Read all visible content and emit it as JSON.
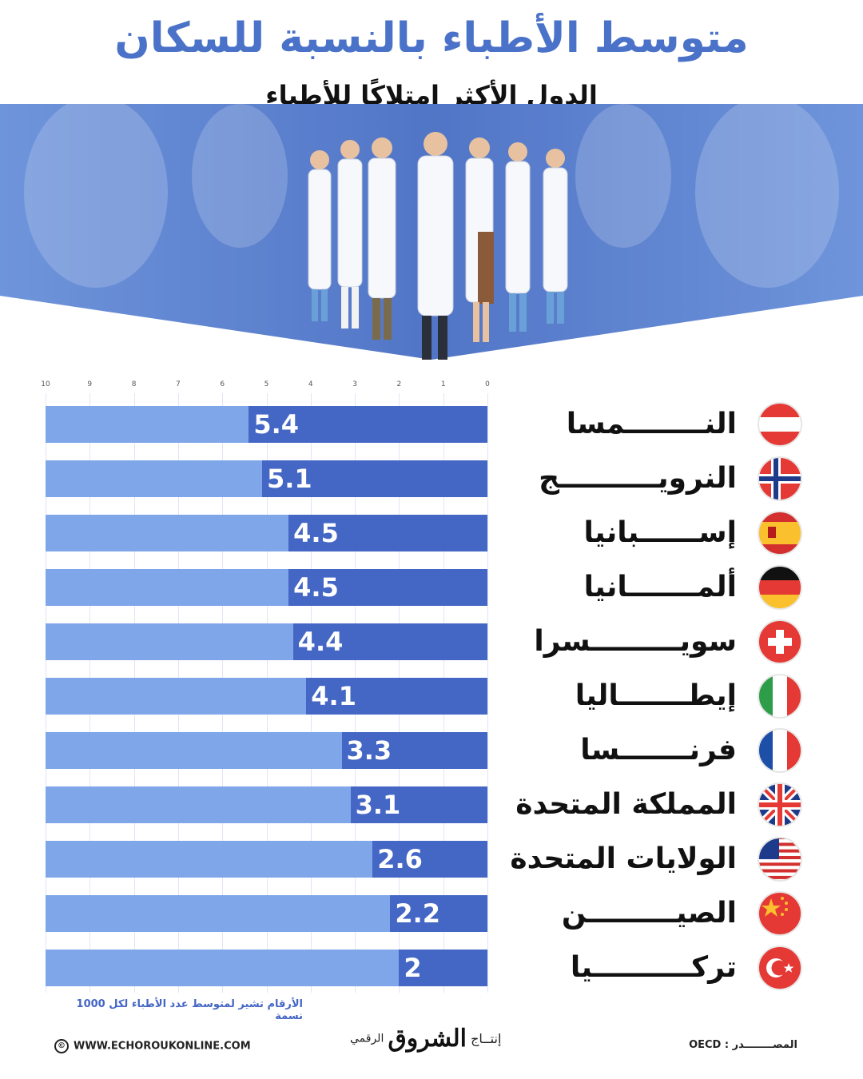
{
  "header": {
    "title": "متوسط الأطباء بالنسبة للسكان",
    "subtitle": "الدول الأكثر امتلاكًا للأطباء"
  },
  "colors": {
    "title": "#4a72c8",
    "bar_background": "#7ea6e8",
    "bar_value": "#4466c4",
    "note": "#4466c4"
  },
  "chart_data": {
    "type": "bar",
    "orientation": "horizontal",
    "categories": [
      "النــــــــمسا",
      "النرويــــــــــج",
      "إســــــبانيا",
      "ألمـــــــانيا",
      "سويـــــــــسرا",
      "إيطـــــــاليا",
      "فرنـــــــسا",
      "المملكة المتحدة",
      "الولايات المتحدة",
      "الصيـــــــــن",
      "تركــــــــــيا"
    ],
    "values": [
      5.4,
      5.1,
      4.5,
      4.5,
      4.4,
      4.1,
      3.3,
      3.1,
      2.6,
      2.2,
      2
    ],
    "value_labels": [
      "5.4",
      "5.1",
      "4.5",
      "4.5",
      "4.4",
      "4.1",
      "3.3",
      "3.1",
      "2.6",
      "2.2",
      "2"
    ],
    "flags": [
      "austria-flag",
      "norway-flag",
      "spain-flag",
      "germany-flag",
      "switzerland-flag",
      "italy-flag",
      "france-flag",
      "uk-flag",
      "usa-flag",
      "china-flag",
      "turkey-flag"
    ],
    "xlim": [
      0,
      10
    ],
    "x_ticks": [
      "10",
      "9",
      "8",
      "7",
      "6",
      "5",
      "4",
      "3",
      "2",
      "1",
      "0"
    ],
    "axis_direction": "right-to-left",
    "grid": true
  },
  "note": "الأرقام تشير لمتوسط عدد الأطباء لكل 1000 نسمة",
  "footer": {
    "copyright_symbol": "©",
    "website": "WWW.ECHOROUKONLINE.COM",
    "production_prefix": "إنتــاج",
    "logo": "الشروق",
    "production_suffix": "الرقمي",
    "source_label": "المصــــــــدر :",
    "source_value": "OECD"
  }
}
